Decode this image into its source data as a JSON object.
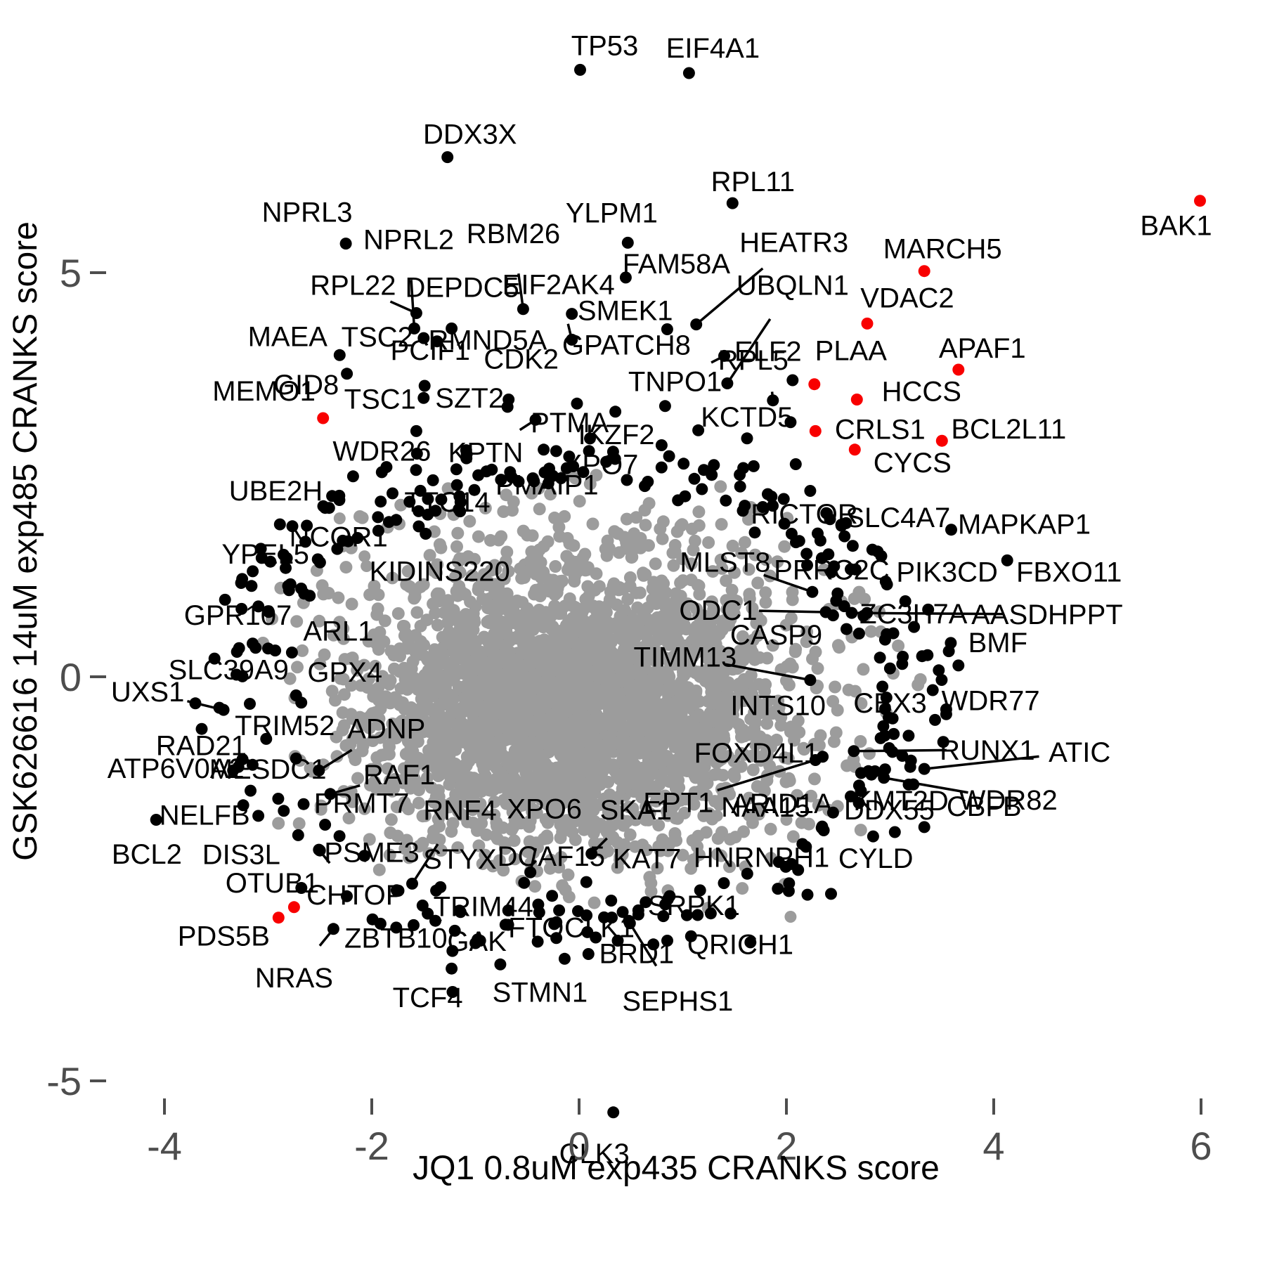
{
  "chart_data": {
    "type": "scatter",
    "title": "",
    "xlabel": "JQ1 0.8uM exp435 CRANKS score",
    "ylabel": "GSK626616 14uM exp485 CRANKS score",
    "x_ticks": [
      -4,
      -2,
      0,
      2,
      4,
      6
    ],
    "y_ticks": [
      5,
      0,
      -5
    ],
    "xlim": [
      -4.6,
      6.4
    ],
    "ylim": [
      -6.1,
      8.4
    ],
    "grid": false,
    "legend": "none",
    "colors": {
      "point_black": "#000000",
      "point_red": "#f80000",
      "point_gray": "#9c9c9c",
      "axis_text": "#4d4d4d"
    },
    "genes": [
      {
        "n": "TP53",
        "x": 0.01,
        "y": 7.51,
        "c": "k",
        "ox": 35,
        "oy": -35
      },
      {
        "n": "EIF4A1",
        "x": 1.06,
        "y": 7.47,
        "c": "k",
        "ox": 34,
        "oy": -36
      },
      {
        "n": "DDX3X",
        "x": -1.27,
        "y": 6.43,
        "c": "k",
        "ox": 32,
        "oy": -33
      },
      {
        "n": "RPL11",
        "x": 1.48,
        "y": 5.86,
        "c": "k",
        "ox": 29,
        "oy": -31
      },
      {
        "n": "NPRL3",
        "x": -2.25,
        "y": 5.36,
        "c": "k",
        "ox": -55,
        "oy": -45
      },
      {
        "n": "YLPM1",
        "x": 0.47,
        "y": 5.37,
        "c": "k",
        "ox": -23,
        "oy": -43
      },
      {
        "n": "NPRL2",
        "x": -1.59,
        "y": 4.31,
        "c": "k",
        "ox": -8,
        "oy": -127,
        "seg": true
      },
      {
        "n": "RBM26",
        "x": -0.54,
        "y": 4.55,
        "c": "k",
        "ox": -14,
        "oy": -108,
        "seg": true
      },
      {
        "n": "RPL22",
        "x": -1.57,
        "y": 4.5,
        "c": "k",
        "ox": -90,
        "oy": -40,
        "seg": true
      },
      {
        "n": "DEPDC5",
        "x": -1.23,
        "y": 4.31,
        "c": "k",
        "ox": 15,
        "oy": -59,
        "seg": true
      },
      {
        "n": "EIF2AK4",
        "x": -0.07,
        "y": 4.17,
        "c": "k",
        "ox": -19,
        "oy": -79,
        "seg": true
      },
      {
        "n": "FAM58A",
        "x": 0.45,
        "y": 4.94,
        "c": "k",
        "ox": 72,
        "oy": -20
      },
      {
        "n": "HEATR3",
        "x": 1.13,
        "y": 4.36,
        "c": "k",
        "ox": 139,
        "oy": -117,
        "seg": true
      },
      {
        "n": "SMEK1",
        "x": -0.07,
        "y": 4.49,
        "c": "k",
        "ox": 76,
        "oy": -5
      },
      {
        "n": "TSC2",
        "x": -1.5,
        "y": 4.19,
        "c": "k",
        "ox": -66,
        "oy": -2
      },
      {
        "n": "RMND5A",
        "x": -1.37,
        "y": 4.15,
        "c": "k",
        "ox": 72,
        "oy": -2
      },
      {
        "n": "MAEA",
        "x": -2.31,
        "y": 3.98,
        "c": "k",
        "ox": -74,
        "oy": -27
      },
      {
        "n": "GID8",
        "x": -2.24,
        "y": 3.75,
        "c": "k",
        "ox": -58,
        "oy": 15
      },
      {
        "n": "PCIF1",
        "x": -1.49,
        "y": 3.6,
        "c": "k",
        "ox": 8,
        "oy": -51,
        "seg": true
      },
      {
        "n": "CDK2",
        "x": -0.68,
        "y": 3.43,
        "c": "k",
        "ox": 18,
        "oy": -58,
        "seg": true
      },
      {
        "n": "GPATCH8",
        "x": 0.85,
        "y": 4.3,
        "c": "k",
        "ox": -58,
        "oy": 22
      },
      {
        "n": "TSC1",
        "x": -1.5,
        "y": 3.45,
        "c": "k",
        "ox": -62,
        "oy": 1
      },
      {
        "n": "SZT2",
        "x": -0.69,
        "y": 3.34,
        "c": "k",
        "ox": -54,
        "oy": -13
      },
      {
        "n": "WDR26",
        "x": -1.57,
        "y": 3.04,
        "c": "k",
        "ox": -49,
        "oy": 28
      },
      {
        "n": "KPTN",
        "x": -0.42,
        "y": 3.18,
        "c": "k",
        "ox": -71,
        "oy": 46,
        "seg": true
      },
      {
        "n": "UBE2H",
        "x": -2.18,
        "y": 2.48,
        "c": "k",
        "ox": -110,
        "oy": 20
      },
      {
        "n": "TTC14",
        "x": -1.8,
        "y": 2.27,
        "c": "k",
        "ox": 78,
        "oy": 12
      },
      {
        "n": "NCOR1",
        "x": -1.48,
        "y": 1.77,
        "c": "k",
        "ox": -124,
        "oy": 4
      },
      {
        "n": "YPEL5",
        "x": -3.25,
        "y": 1.21,
        "c": "k",
        "ox": 33,
        "oy": -36
      },
      {
        "n": "KIDINS220",
        "x": -2.07,
        "y": 1.49,
        "c": "g",
        "ox": 107,
        "oy": 21
      },
      {
        "n": "RICTOR",
        "x": 1.82,
        "y": 2.26,
        "c": "k",
        "ox": 52,
        "oy": 28
      },
      {
        "n": "SLC4A7",
        "x": 2.88,
        "y": 1.55,
        "c": "k",
        "ox": 29,
        "oy": -49
      },
      {
        "n": "MAPKAP1",
        "x": 3.59,
        "y": 1.82,
        "c": "k",
        "ox": 104,
        "oy": -8
      },
      {
        "n": "MLST8",
        "x": 2.25,
        "y": 1.05,
        "c": "k",
        "ox": -124,
        "oy": -43,
        "seg": true
      },
      {
        "n": "PRRC2C",
        "x": 2.64,
        "y": 1.62,
        "c": "k",
        "ox": -30,
        "oy": 34
      },
      {
        "n": "FBXO11",
        "x": 4.13,
        "y": 1.44,
        "c": "k",
        "ox": 88,
        "oy": 16
      },
      {
        "n": "ODC1",
        "x": 2.38,
        "y": 0.8,
        "c": "k",
        "ox": -153,
        "oy": -3,
        "seg": true
      },
      {
        "n": "ZC3H7A",
        "x": 2.48,
        "y": 0.94,
        "c": "k",
        "ox": 110,
        "oy": 18
      },
      {
        "n": "AASDHPPT",
        "x": 2.63,
        "y": 0.79,
        "c": "k",
        "ox": 278,
        "oy": 2,
        "seg": true
      },
      {
        "n": "CASP9",
        "x": 2.58,
        "y": 0.59,
        "c": "k",
        "ox": -100,
        "oy": 8
      },
      {
        "n": "TIMM13",
        "x": 2.23,
        "y": -0.04,
        "c": "k",
        "ox": -178,
        "oy": -33,
        "seg": true
      },
      {
        "n": "BMF",
        "x": 3.66,
        "y": 0.14,
        "c": "k",
        "ox": 56,
        "oy": -33
      },
      {
        "n": "FOXD4L1",
        "x": 2.35,
        "y": -0.99,
        "c": "k",
        "ox": -94,
        "oy": -6
      },
      {
        "n": "RUNX1",
        "x": 2.65,
        "y": -0.92,
        "c": "k",
        "ox": 190,
        "oy": -2,
        "seg": true
      },
      {
        "n": "ATIC",
        "x": 3.33,
        "y": -1.14,
        "c": "k",
        "ox": 221,
        "oy": -24,
        "seg": true
      },
      {
        "n": "EPT1",
        "x": 2.28,
        "y": -1.03,
        "c": "k",
        "ox": -195,
        "oy": 60,
        "seg": true
      },
      {
        "n": "ARID1A",
        "x": 2.62,
        "y": -1.48,
        "c": "k",
        "ox": -98,
        "oy": 10
      },
      {
        "n": "KMT2D",
        "x": 2.82,
        "y": -1.21,
        "c": "k",
        "ox": 42,
        "oy": 37
      },
      {
        "n": "WDR82",
        "x": 2.94,
        "y": -1.25,
        "c": "k",
        "ox": 177,
        "oy": 31,
        "seg": true
      },
      {
        "n": "CBFB",
        "x": 3.33,
        "y": -1.86,
        "c": "k",
        "ox": 85,
        "oy": -30
      },
      {
        "n": "DDX55",
        "x": 2.45,
        "y": -1.68,
        "c": "k",
        "ox": 80,
        "oy": -4
      },
      {
        "n": "CYLD",
        "x": 2.34,
        "y": -1.87,
        "c": "k",
        "ox": 77,
        "oy": 43
      },
      {
        "n": "RNF4",
        "x": -1.61,
        "y": -2.56,
        "c": "k",
        "ox": 68,
        "oy": -105,
        "seg": true
      },
      {
        "n": "XPO6",
        "x": -0.47,
        "y": -2.42,
        "c": "k",
        "ox": 20,
        "oy": -91,
        "seg": true
      },
      {
        "n": "SKA1",
        "x": 0.12,
        "y": -2.19,
        "c": "k",
        "ox": 63,
        "oy": -63,
        "seg": true
      },
      {
        "n": "DCAF15",
        "x": 0.07,
        "y": -2.54,
        "c": "k",
        "ox": -50,
        "oy": -37
      },
      {
        "n": "KAT7",
        "x": 0.31,
        "y": -2.77,
        "c": "k",
        "ox": 51,
        "oy": -60
      },
      {
        "n": "TRIM44",
        "x": -0.53,
        "y": -2.55,
        "c": "k",
        "ox": -58,
        "oy": 33
      },
      {
        "n": "PRMT7",
        "x": -2.45,
        "y": -1.83,
        "c": "k",
        "ox": 52,
        "oy": -31
      },
      {
        "n": "DIS3L",
        "x": -2.71,
        "y": -1.96,
        "c": "k",
        "ox": -81,
        "oy": 27
      },
      {
        "n": "CHTOP",
        "x": -2.51,
        "y": -2.14,
        "c": "k",
        "ox": 52,
        "oy": 64,
        "seg": true
      },
      {
        "n": "MESDC1",
        "x": -3.24,
        "y": -1.59,
        "c": "k",
        "ox": 35,
        "oy": -52
      },
      {
        "n": "NELFB",
        "x": -4.08,
        "y": -1.77,
        "c": "k",
        "ox": 69,
        "oy": -7
      },
      {
        "n": "OTUB1",
        "x": -2.75,
        "y": -2.85,
        "c": "r",
        "ox": -31,
        "oy": -35
      },
      {
        "n": "PDS5B",
        "x": -2.9,
        "y": -2.98,
        "c": "r",
        "ox": -78,
        "oy": 26
      },
      {
        "n": "NRAS",
        "x": -2.37,
        "y": -3.12,
        "c": "k",
        "ox": -56,
        "oy": 69,
        "seg": true
      },
      {
        "n": "ZBTB10",
        "x": -1.51,
        "y": -2.83,
        "c": "k",
        "ox": -38,
        "oy": 46,
        "seg": true
      },
      {
        "n": "GAK",
        "x": -1.46,
        "y": -2.93,
        "c": "k",
        "ox": 70,
        "oy": 39,
        "seg": true
      },
      {
        "n": "TCF4",
        "x": -1.23,
        "y": -3.61,
        "c": "k",
        "ox": -34,
        "oy": 41
      },
      {
        "n": "STMN1",
        "x": -0.14,
        "y": -3.49,
        "c": "k",
        "ox": -35,
        "oy": 47
      },
      {
        "n": "FTO",
        "x": 0.08,
        "y": -3.16,
        "c": "k",
        "ox": -73,
        "oy": -7
      },
      {
        "n": "CLK1",
        "x": 0.42,
        "y": -2.91,
        "c": "k",
        "ox": -33,
        "oy": 22
      },
      {
        "n": "BRD1",
        "x": 0.48,
        "y": -3.02,
        "c": "k",
        "ox": 11,
        "oy": 46
      },
      {
        "n": "SEPHS1",
        "x": 0.49,
        "y": -3.05,
        "c": "k",
        "ox": 68,
        "oy": 110,
        "seg": true
      },
      {
        "n": "QRICH1",
        "x": 1.04,
        "y": -2.95,
        "c": "k",
        "ox": 76,
        "oy": 41
      },
      {
        "n": "SRPK1",
        "x": 1.08,
        "y": -3.21,
        "c": "k",
        "ox": 4,
        "oy": -44
      },
      {
        "n": "CLK3",
        "x": 0.33,
        "y": -5.39,
        "c": "k",
        "ox": -27,
        "oy": 58
      },
      {
        "n": "UXS1",
        "x": -3.43,
        "y": -0.41,
        "c": "k",
        "ox": -108,
        "oy": -26,
        "seg": true
      },
      {
        "n": "TRIM52",
        "x": -2.73,
        "y": -1.01,
        "c": "k",
        "ox": -16,
        "oy": -47
      },
      {
        "n": "ADNP",
        "x": -2.51,
        "y": -1.16,
        "c": "k",
        "ox": 96,
        "oy": -60,
        "seg": true
      },
      {
        "n": "RAD21",
        "x": -3.15,
        "y": -1.09,
        "c": "k",
        "ox": -73,
        "oy": -28
      },
      {
        "n": "RAF1",
        "x": -2.4,
        "y": -1.45,
        "c": "k",
        "ox": 98,
        "oy": -28,
        "seg": true
      },
      {
        "n": "SLC39A9",
        "x": -2.73,
        "y": -0.23,
        "c": "k",
        "ox": -96,
        "oy": -37
      },
      {
        "n": "GPX4",
        "x": -2.68,
        "y": -0.32,
        "c": "k",
        "ox": 62,
        "oy": -44
      },
      {
        "n": "GPR107",
        "x": -3.0,
        "y": 0.35,
        "c": "k",
        "ox": -43,
        "oy": -48
      },
      {
        "n": "ARL1",
        "x": -2.77,
        "y": 0.3,
        "c": "k",
        "ox": 66,
        "oy": -31
      },
      {
        "n": "UBQLN1",
        "x": 1.43,
        "y": 3.63,
        "c": "k",
        "ox": 93,
        "oy": -140,
        "seg": true
      },
      {
        "n": "ELF2",
        "x": 1.87,
        "y": 3.42,
        "c": "k",
        "ox": -7,
        "oy": -70,
        "seg": true
      },
      {
        "n": "TNPO1",
        "x": 1.4,
        "y": 3.97,
        "c": "k",
        "ox": -70,
        "oy": 36,
        "seg": true
      },
      {
        "n": "KCTD5",
        "x": 2.06,
        "y": 3.67,
        "c": "k",
        "ox": -65,
        "oy": 52
      },
      {
        "n": "MARCH5",
        "x": 3.33,
        "y": 5.02,
        "c": "r",
        "ox": 26,
        "oy": -32
      },
      {
        "n": "VDAC2",
        "x": 2.78,
        "y": 4.37,
        "c": "r",
        "ox": 57,
        "oy": -37
      },
      {
        "n": "APAF1",
        "x": 3.66,
        "y": 3.8,
        "c": "r",
        "ox": 34,
        "oy": -31
      },
      {
        "n": "PLAA",
        "x": 2.27,
        "y": 3.62,
        "c": "r",
        "ox": 52,
        "oy": -48
      },
      {
        "n": "HCCS",
        "x": 2.68,
        "y": 3.43,
        "c": "r",
        "ox": 92,
        "oy": -12
      },
      {
        "n": "CRLS1",
        "x": 2.28,
        "y": 3.04,
        "c": "r",
        "ox": 92,
        "oy": -3
      },
      {
        "n": "BCL2L11",
        "x": 3.5,
        "y": 2.92,
        "c": "r",
        "ox": 95,
        "oy": -17
      },
      {
        "n": "CYCS",
        "x": 2.66,
        "y": 2.81,
        "c": "r",
        "ox": 82,
        "oy": 18
      },
      {
        "n": "BAK1",
        "x": 5.99,
        "y": 5.89,
        "c": "r",
        "ox": -34,
        "oy": 35
      },
      {
        "n": "MEMO1",
        "x": -3.04,
        "y": 3.54,
        "c": "k",
        "dot": false
      },
      {
        "n": "PTMA",
        "x": -0.09,
        "y": 3.15,
        "c": "k",
        "dot": false
      },
      {
        "n": "IKZF2",
        "x": 0.36,
        "y": 3.0,
        "c": "k",
        "dot": false
      },
      {
        "n": "XPO7",
        "x": 0.21,
        "y": 2.63,
        "c": "k",
        "dot": false
      },
      {
        "n": "PMAIP1",
        "x": -0.31,
        "y": 2.38,
        "c": "k",
        "dot": false
      },
      {
        "n": "RPL5",
        "x": 1.68,
        "y": 3.92,
        "c": "k",
        "dot": false
      },
      {
        "n": "PIK3CD",
        "x": 3.55,
        "y": 1.3,
        "c": "k",
        "dot": false
      },
      {
        "n": "WDR77",
        "x": 3.97,
        "y": -0.29,
        "c": "k",
        "dot": false
      },
      {
        "n": "CBX3",
        "x": 3.0,
        "y": -0.32,
        "c": "k",
        "dot": false
      },
      {
        "n": "INTS10",
        "x": 1.92,
        "y": -0.35,
        "c": "k",
        "dot": false
      },
      {
        "n": "NAA15",
        "x": 1.8,
        "y": -1.61,
        "c": "k",
        "dot": false
      },
      {
        "n": "HNRNPH1",
        "x": 1.76,
        "y": -2.23,
        "c": "k",
        "dot": false
      },
      {
        "n": "STYX",
        "x": -1.15,
        "y": -2.25,
        "c": "k",
        "dot": false
      },
      {
        "n": "PSME3",
        "x": -2.0,
        "y": -2.17,
        "c": "k",
        "dot": false
      },
      {
        "n": "ATP6V0A2",
        "x": -3.89,
        "y": -1.13,
        "c": "k",
        "dot": false
      },
      {
        "n": "BCL2",
        "x": -4.17,
        "y": -2.19,
        "c": "k",
        "dot": false
      }
    ],
    "extra_points": [
      {
        "x": -2.47,
        "y": 3.2,
        "c": "r"
      },
      {
        "x": 3.47,
        "y": 0.08,
        "c": "k"
      },
      {
        "x": 2.23,
        "y": 2.3,
        "c": "k"
      },
      {
        "x": 2.09,
        "y": 2.63,
        "c": "k"
      },
      {
        "x": 2.45,
        "y": 0.76,
        "c": "k"
      },
      {
        "x": -1.22,
        "y": -3.9,
        "c": "k"
      },
      {
        "x": 0.09,
        "y": -3.43,
        "c": "k"
      },
      {
        "x": -0.26,
        "y": -2.71,
        "c": "k"
      },
      {
        "x": -0.24,
        "y": -3.06,
        "c": "k"
      },
      {
        "x": -0.01,
        "y": -2.9,
        "c": "k"
      },
      {
        "x": 2.36,
        "y": -1.9,
        "c": "k"
      },
      {
        "x": 2.04,
        "y": 3.15,
        "c": "k"
      },
      {
        "x": 1.62,
        "y": 2.95,
        "c": "k"
      },
      {
        "x": 0.83,
        "y": 3.35,
        "c": "k"
      },
      {
        "x": 1.15,
        "y": 3.05,
        "c": "k"
      },
      {
        "x": 0.35,
        "y": 3.28,
        "c": "k"
      },
      {
        "x": -0.02,
        "y": 3.38,
        "c": "k"
      },
      {
        "x": 1.3,
        "y": 2.62,
        "c": "k"
      },
      {
        "x": 2.42,
        "y": 1.95,
        "c": "k"
      },
      {
        "x": 2.62,
        "y": 1.33,
        "c": "k"
      },
      {
        "x": 1.55,
        "y": 2.5,
        "c": "k"
      },
      {
        "x": 2.04,
        "y": -2.97,
        "c": "g"
      },
      {
        "x": 2.0,
        "y": -1.77,
        "c": "g"
      },
      {
        "x": 1.33,
        "y": -1.72,
        "c": "g"
      },
      {
        "x": -2.31,
        "y": 1.96,
        "c": "g"
      },
      {
        "x": -2.05,
        "y": 1.37,
        "c": "g"
      }
    ],
    "cloud": {
      "n": 3000,
      "cx": -0.06,
      "cy": -0.28,
      "sx": 1.05,
      "sy": 0.92,
      "clip": 2.75,
      "seed": 7
    },
    "ring_black": {
      "n": 400,
      "f_base": 1.03,
      "f_spread": 0.26,
      "jitter": 0.13,
      "seed": 99
    },
    "ring_gray": {
      "n": 95,
      "f_base": 0.99,
      "f_spread": 0.17,
      "jitter": 0.1,
      "seed": 55
    }
  }
}
